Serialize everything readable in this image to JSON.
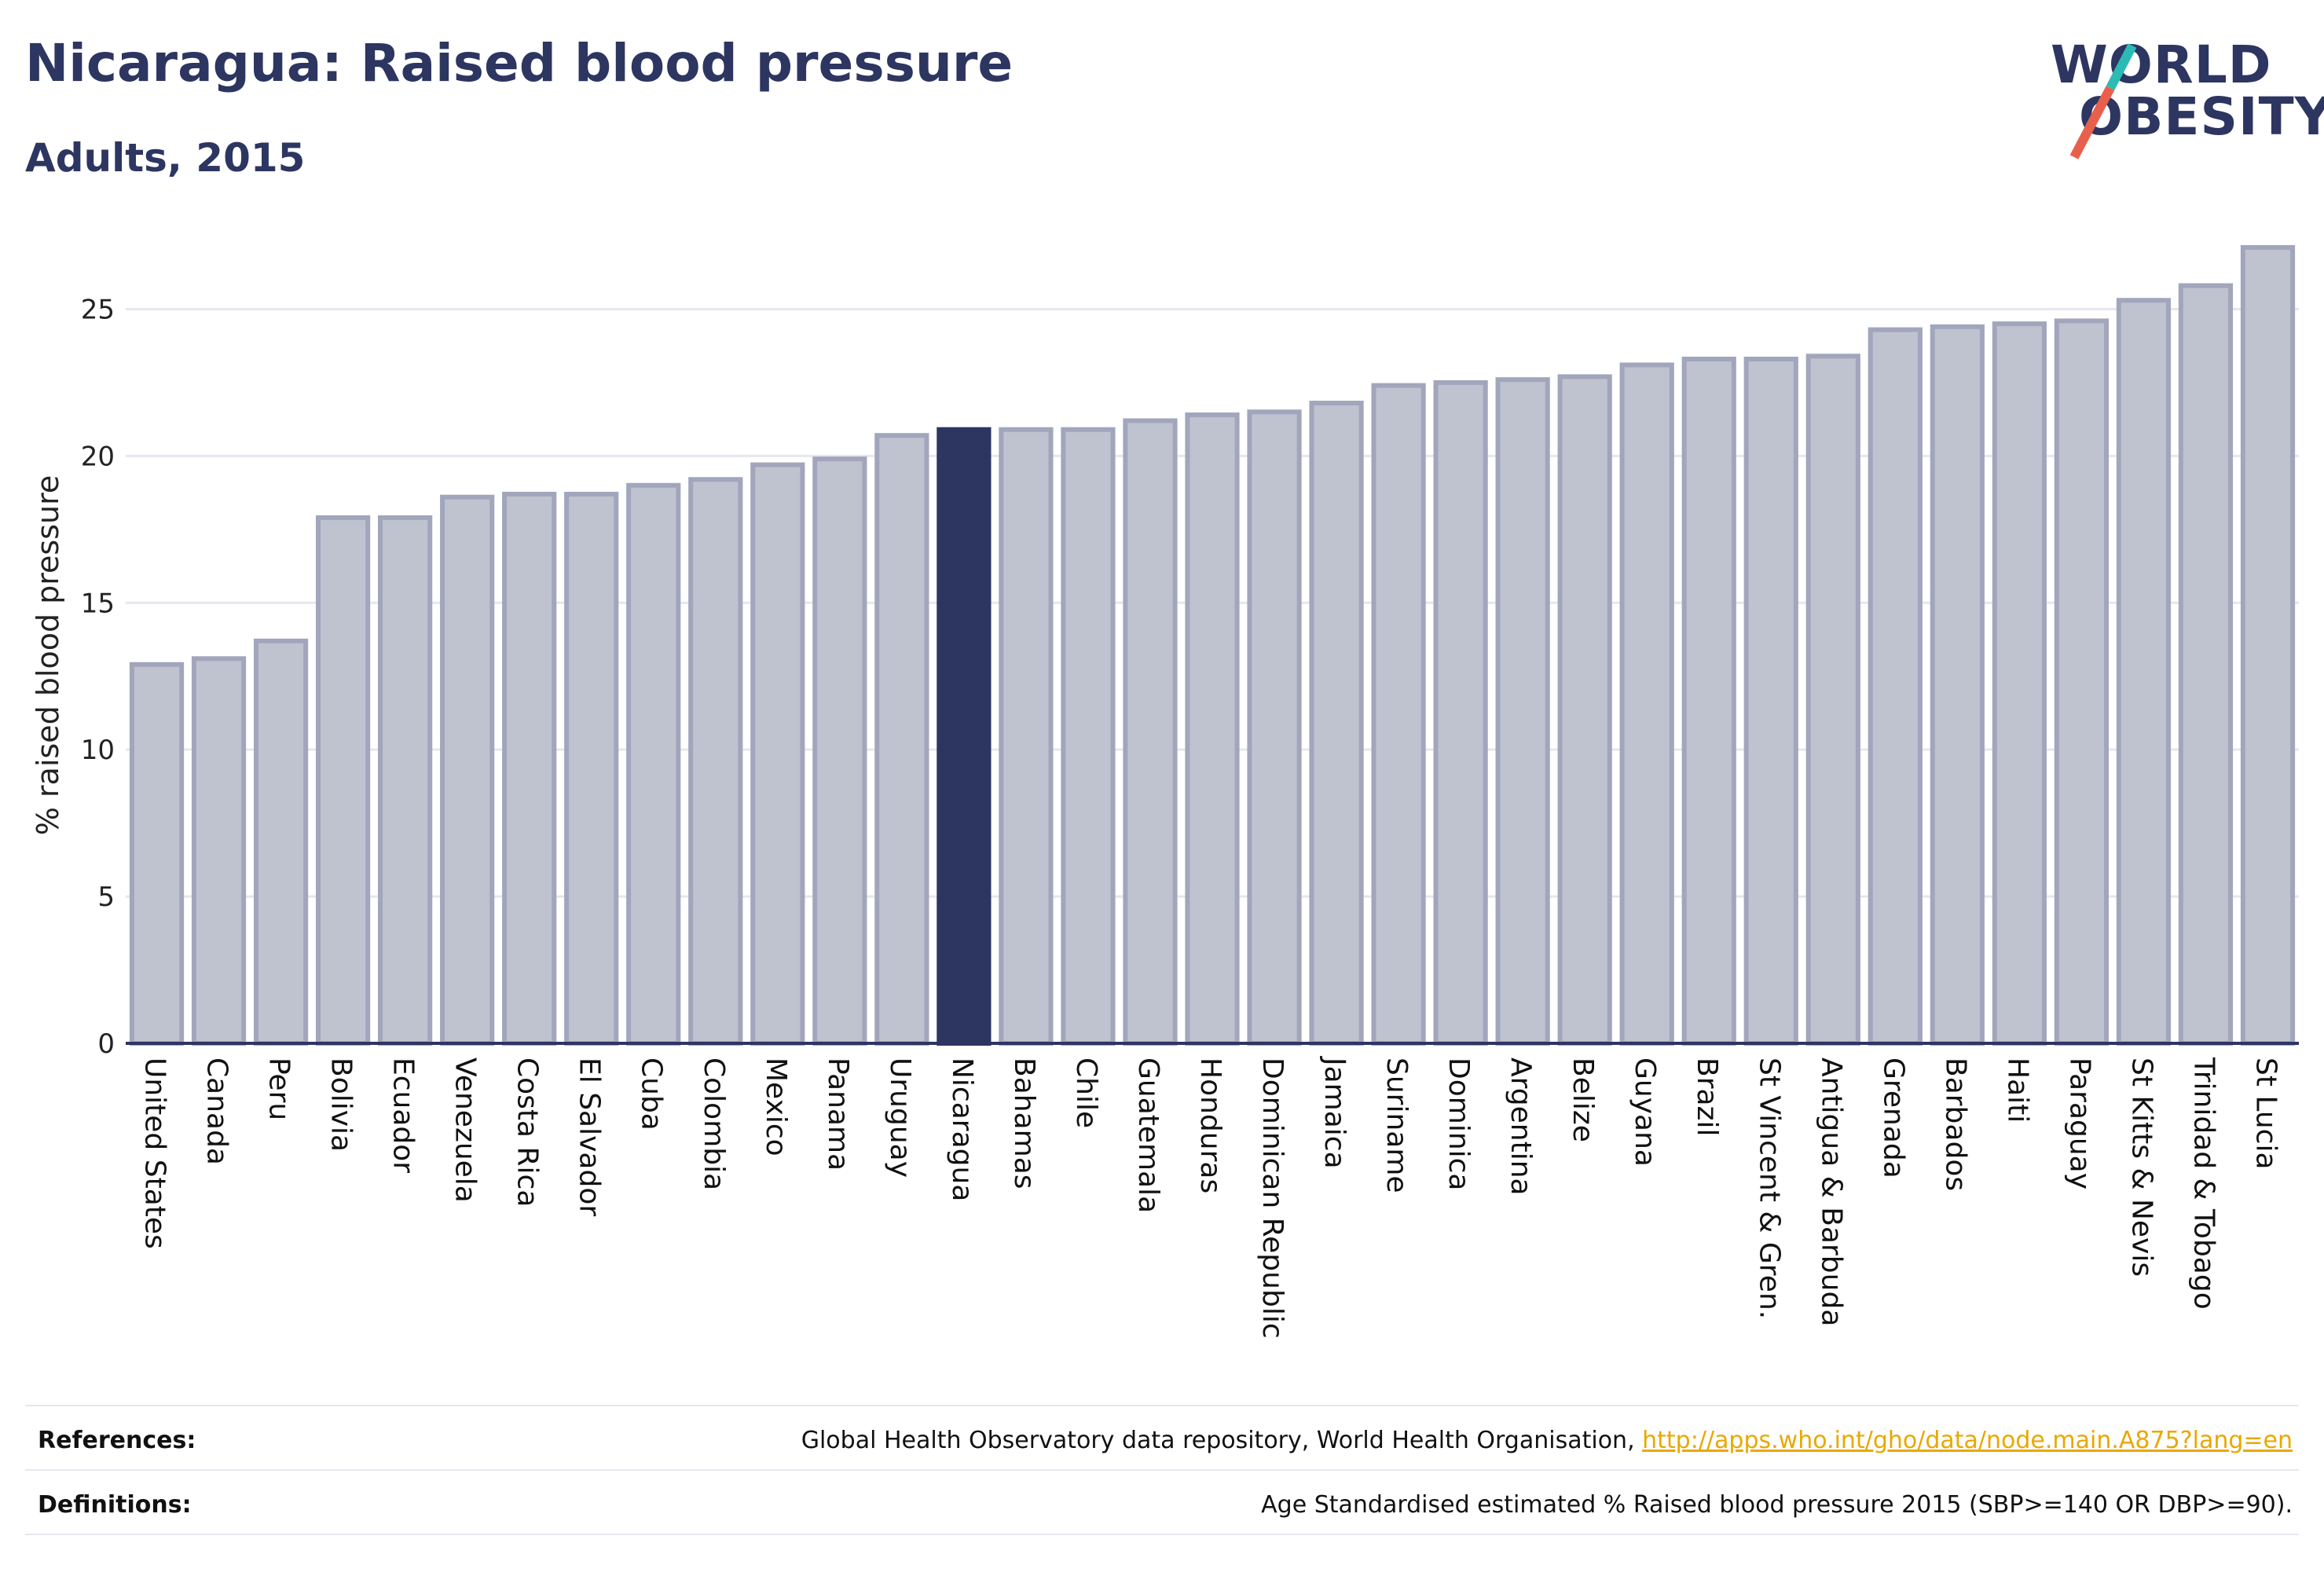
{
  "header": {
    "title": "Nicaragua: Raised blood pressure",
    "subtitle": "Adults, 2015"
  },
  "logo": {
    "line1": "WORLD",
    "line2": "OBESITY",
    "slash_colors": [
      "#e8604c",
      "#2bbbb5"
    ]
  },
  "colors": {
    "highlight": "#2d3561",
    "bar_fill": "#bfc2cf",
    "bar_stroke": "#a2a6bc",
    "grid": "#e6e7ee",
    "axis": "#2d3561"
  },
  "chart_data": {
    "type": "bar",
    "ylabel": "% raised blood pressure",
    "ylim": [
      0,
      27.5
    ],
    "yticks": [
      0,
      5,
      10,
      15,
      20,
      25
    ],
    "grid": true,
    "highlight_category": "Nicaragua",
    "categories": [
      "United States",
      "Canada",
      "Peru",
      "Bolivia",
      "Ecuador",
      "Venezuela",
      "Costa Rica",
      "El Salvador",
      "Cuba",
      "Colombia",
      "Mexico",
      "Panama",
      "Uruguay",
      "Nicaragua",
      "Bahamas",
      "Chile",
      "Guatemala",
      "Honduras",
      "Dominican Republic",
      "Jamaica",
      "Suriname",
      "Dominica",
      "Argentina",
      "Belize",
      "Guyana",
      "Brazil",
      "St Vincent & Gren.",
      "Antigua & Barbuda",
      "Grenada",
      "Barbados",
      "Haiti",
      "Paraguay",
      "St Kitts & Nevis",
      "Trinidad & Tobago",
      "St Lucia"
    ],
    "values": [
      12.9,
      13.1,
      13.7,
      17.9,
      17.9,
      18.6,
      18.7,
      18.7,
      19.0,
      19.2,
      19.7,
      19.9,
      20.7,
      20.9,
      20.9,
      20.9,
      21.2,
      21.4,
      21.5,
      21.8,
      22.4,
      22.5,
      22.6,
      22.7,
      23.1,
      23.3,
      23.3,
      23.4,
      24.3,
      24.4,
      24.5,
      24.6,
      25.3,
      25.8,
      27.1
    ]
  },
  "footer": {
    "references_label": "References:",
    "references_text": "Global Health Observatory data repository, World Health Organisation, ",
    "references_link": "http://apps.who.int/gho/data/node.main.A875?lang=en",
    "definitions_label": "Definitions:",
    "definitions_text": "Age Standardised estimated % Raised blood pressure 2015 (SBP>=140 OR DBP>=90)."
  }
}
